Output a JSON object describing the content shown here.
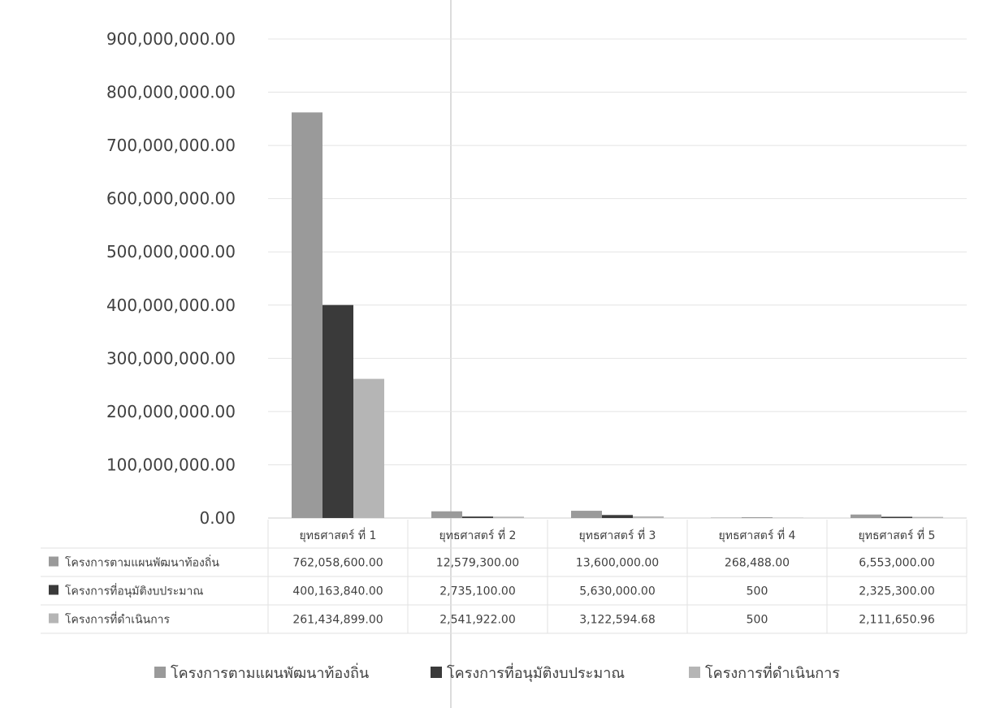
{
  "chart_data": {
    "type": "bar",
    "categories": [
      "ยุทธศาสตร์ ที่ 1",
      "ยุทธศาสตร์ ที่ 2",
      "ยุทธศาสตร์ ที่ 3",
      "ยุทธศาสตร์ ที่ 4",
      "ยุทธศาสตร์ ที่ 5"
    ],
    "series": [
      {
        "name": "โครงการตามแผนพัฒนาท้องถิ่น",
        "color": "#9a9a9a",
        "values": [
          762058600.0,
          12579300.0,
          13600000.0,
          268488.0,
          6553000.0
        ],
        "labels": [
          "762,058,600.00",
          "12,579,300.00",
          "13,600,000.00",
          "268,488.00",
          "6,553,000.00"
        ]
      },
      {
        "name": "โครงการที่อนุมัติงบประมาณ",
        "color": "#3a3a3a",
        "values": [
          400163840.0,
          2735100.0,
          5630000.0,
          500,
          2325300.0
        ],
        "labels": [
          "400,163,840.00",
          "2,735,100.00",
          "5,630,000.00",
          "500",
          "2,325,300.00"
        ]
      },
      {
        "name": "โครงการที่ดำเนินการ",
        "color": "#b5b5b5",
        "values": [
          261434899.0,
          2541922.0,
          3122594.68,
          500,
          2111650.96
        ],
        "labels": [
          "261,434,899.00",
          "2,541,922.00",
          "3,122,594.68",
          "500",
          "2,111,650.96"
        ]
      }
    ],
    "ylim": [
      0,
      900000000
    ],
    "yticks": [
      "0.00",
      "100,000,000.00",
      "200,000,000.00",
      "300,000,000.00",
      "400,000,000.00",
      "500,000,000.00",
      "600,000,000.00",
      "700,000,000.00",
      "800,000,000.00",
      "900,000,000.00"
    ],
    "grid": true,
    "legend": "bottom",
    "data_table": true
  }
}
